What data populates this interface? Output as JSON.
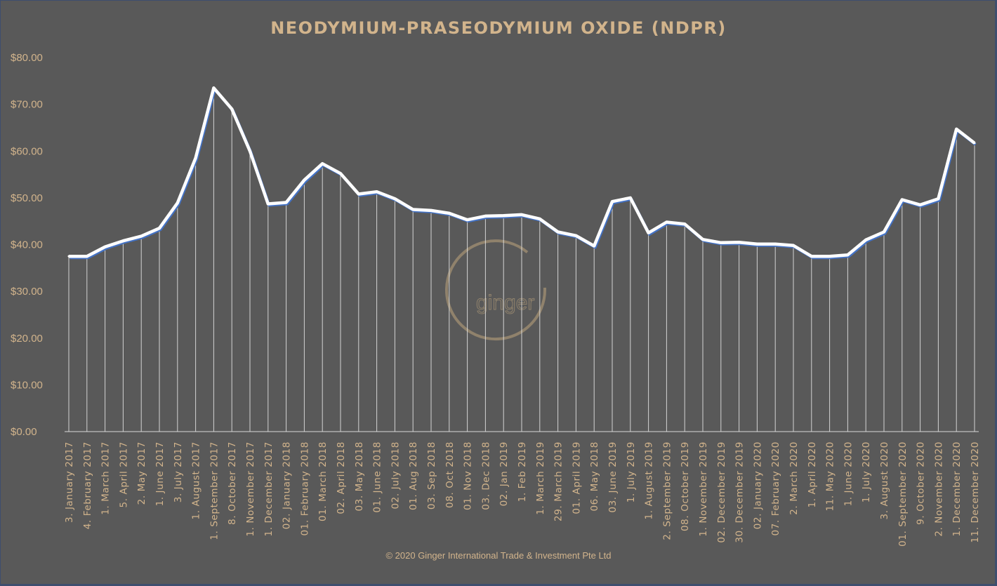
{
  "colors": {
    "background": "#595959",
    "border": "#3e4e6e",
    "text": "#d2b48c",
    "line_main": "#ffffff",
    "line_shadow": "#4472c4",
    "watermark": "#9a8a70"
  },
  "copyright": "© 2020 Ginger International Trade & Investment Pte Ltd",
  "watermark": {
    "text": "ginger"
  },
  "chart_data": {
    "type": "line",
    "title": "NEODYMIUM-PRASEODYMIUM  OXIDE (NDPR)",
    "xlabel": "",
    "ylabel": "",
    "ylim": [
      0,
      80
    ],
    "y_ticks": [
      "$0.00",
      "$10.00",
      "$20.00",
      "$30.00",
      "$40.00",
      "$50.00",
      "$60.00",
      "$70.00",
      "$80.00"
    ],
    "grid": false,
    "drop_lines": true,
    "legend": "none",
    "categories": [
      "3. January 2017",
      "4. February 2017",
      "1. March 2017",
      "5. April 2017",
      "2. May 2017",
      "1. June 2017",
      "3. July 2017",
      "1. August 2017",
      "1. September 2017",
      "8. October 2017",
      "1. November 2017",
      "1. December 2017",
      "02. January 2018",
      "01. February 2018",
      "01. March 2018",
      "02. April 2018",
      "03. May 2018",
      "01. June 2018",
      "02. July 2018",
      "01. Aug 2018",
      "03. Sep 2018",
      "08. Oct 2018",
      "01. Nov 2018",
      "03. Dec 2018",
      "02. Jan 2019",
      "1. Feb 2019",
      "1. March 2019",
      "29. March 2019",
      "01. April 2019",
      "06. May 2018",
      "03. June 2019",
      "1. July 2019",
      "1. August 2019",
      "2. September 2019",
      "08. October 2019",
      "1. November 2019",
      "02. December 2019",
      "30. December 2019",
      "02. January 2020",
      "07. February 2020",
      "2. March 2020",
      "1. April 2020",
      "11. May 2020",
      "1. June 2020",
      "1. July 2020",
      "3. August 2020",
      "01. September 2020",
      "9. October 2020",
      "2. November 2020",
      "1. December 2020",
      "11. December 2020"
    ],
    "series": [
      {
        "values": [
          37.5,
          37.5,
          39.5,
          40.8,
          41.8,
          43.5,
          48.9,
          58.5,
          73.5,
          69.0,
          60.0,
          48.7,
          49.0,
          53.8,
          57.3,
          55.2,
          50.8,
          51.3,
          49.8,
          47.5,
          47.3,
          46.7,
          45.3,
          46.1,
          46.2,
          46.4,
          45.5,
          42.7,
          41.9,
          39.7,
          49.2,
          50.0,
          42.5,
          44.8,
          44.4,
          41.1,
          40.4,
          40.5,
          40.1,
          40.1,
          39.8,
          37.5,
          37.5,
          37.8,
          41.0,
          42.7,
          49.6,
          48.5,
          49.8,
          64.7,
          61.7
        ]
      }
    ]
  }
}
